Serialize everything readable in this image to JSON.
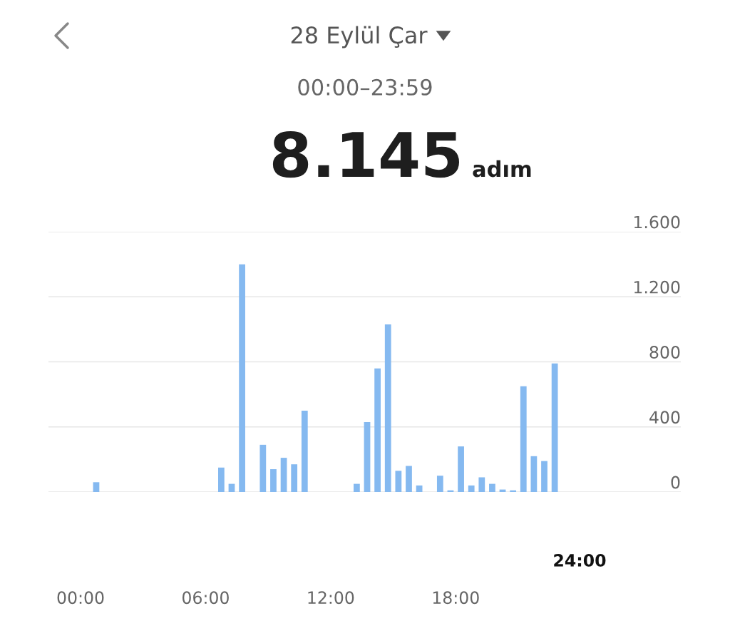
{
  "chart_data": {
    "type": "bar",
    "title": "28 Eylül Çar",
    "subtitle": "00:00–23:59",
    "annotations": [
      "8.145",
      "adım",
      "24:00"
    ],
    "x": [
      0.75,
      6.75,
      7.25,
      7.75,
      8.75,
      9.25,
      9.75,
      10.25,
      10.75,
      13.25,
      13.75,
      14.25,
      14.75,
      15.25,
      15.75,
      16.25,
      17.25,
      17.75,
      18.25,
      18.75,
      19.25,
      19.75,
      20.25,
      20.75,
      21.25,
      21.75,
      22.25,
      22.75
    ],
    "values": [
      60,
      150,
      50,
      1400,
      290,
      140,
      210,
      170,
      500,
      50,
      430,
      760,
      1030,
      130,
      160,
      40,
      100,
      10,
      280,
      40,
      90,
      50,
      15,
      10,
      650,
      220,
      190,
      790
    ],
    "color": "#85b9f0",
    "xlim": [
      -1.54,
      28.8
    ],
    "xticks": [
      {
        "value": 0,
        "label": "00:00"
      },
      {
        "value": 6,
        "label": "06:00"
      },
      {
        "value": 12,
        "label": "12:00"
      },
      {
        "value": 18,
        "label": "18:00"
      }
    ],
    "ylim": [
      0,
      1600
    ],
    "yticks": [
      0,
      {
        "value": 400,
        "label": "400"
      },
      {
        "value": 800,
        "label": "800"
      },
      {
        "value": 1200,
        "label": "1.200"
      },
      {
        "value": 1600,
        "label": "1.600"
      }
    ],
    "grid": "y",
    "legend": false
  }
}
